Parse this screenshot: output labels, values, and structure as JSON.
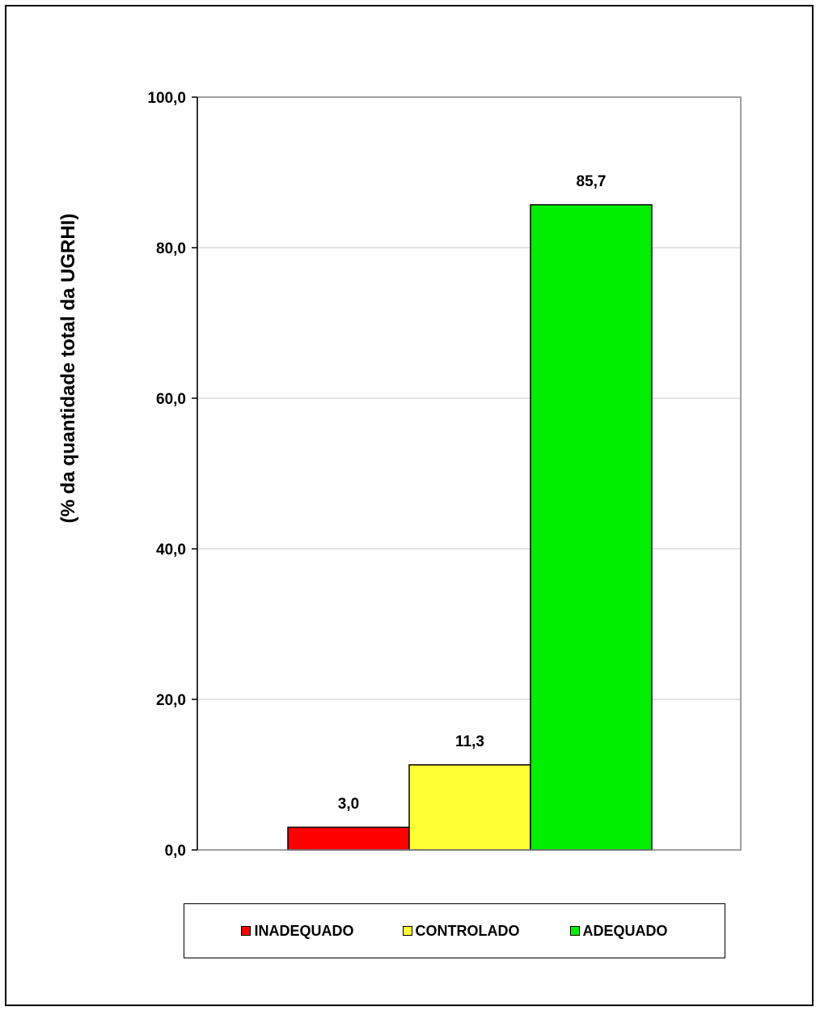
{
  "chart_data": {
    "type": "bar",
    "title": "",
    "xlabel": "",
    "ylabel": "(% da quantidade total da UGRHI)",
    "ylim": [
      0,
      100
    ],
    "yticks": [
      "0,0",
      "20,0",
      "40,0",
      "60,0",
      "80,0",
      "100,0"
    ],
    "ytick_values": [
      0,
      20,
      40,
      60,
      80,
      100
    ],
    "grid": true,
    "legend_position": "bottom",
    "series": [
      {
        "name": "INADEQUADO",
        "value": 3.0,
        "label": "3,0",
        "color": "#ff0000"
      },
      {
        "name": "CONTROLADO",
        "value": 11.3,
        "label": "11,3",
        "color": "#ffff33"
      },
      {
        "name": "ADEQUADO",
        "value": 85.7,
        "label": "85,7",
        "color": "#00ee00"
      }
    ]
  }
}
